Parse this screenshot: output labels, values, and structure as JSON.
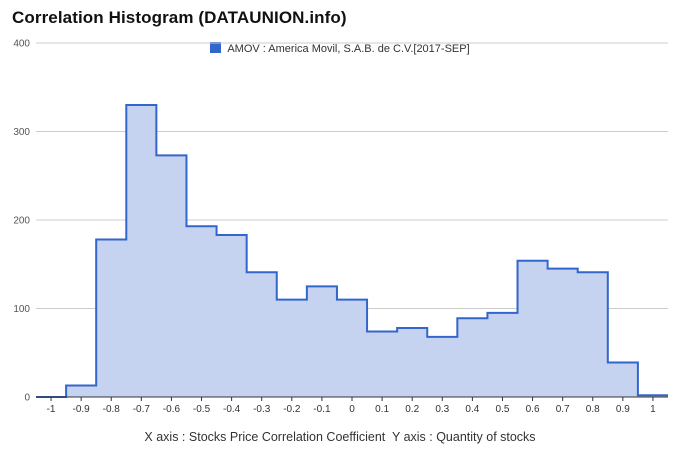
{
  "title": "Correlation Histogram (DATAUNION.info)",
  "legend_label": "AMOV : America Movil, S.A.B. de C.V.[2017-SEP]",
  "axis_caption": "X axis : Stocks Price Correlation Coefficient  Y axis : Quantity of stocks",
  "colors": {
    "line": "#3366cc",
    "fill": "#c5d3f0",
    "grid": "#cccccc"
  },
  "chart_data": {
    "type": "area",
    "step": true,
    "title": "Correlation Histogram (DATAUNION.info)",
    "xlabel": "Stocks Price Correlation Coefficient",
    "ylabel": "Quantity of stocks",
    "xlim": [
      -1.05,
      1.05
    ],
    "ylim": [
      0,
      400
    ],
    "x_ticks": [
      "-1",
      "-0.9",
      "-0.8",
      "-0.7",
      "-0.6",
      "-0.5",
      "-0.4",
      "-0.3",
      "-0.2",
      "-0.1",
      "0",
      "0.1",
      "0.2",
      "0.3",
      "0.4",
      "0.5",
      "0.6",
      "0.7",
      "0.8",
      "0.9",
      "1"
    ],
    "y_ticks": [
      0,
      100,
      200,
      300,
      400
    ],
    "grid": true,
    "legend_position": "top",
    "series": [
      {
        "name": "AMOV : America Movil, S.A.B. de C.V.[2017-SEP]",
        "x": [
          -1,
          -0.9,
          -0.8,
          -0.7,
          -0.6,
          -0.5,
          -0.4,
          -0.3,
          -0.2,
          -0.1,
          0,
          0.1,
          0.2,
          0.3,
          0.4,
          0.5,
          0.6,
          0.7,
          0.8,
          0.9,
          1
        ],
        "values": [
          0,
          13,
          178,
          330,
          273,
          193,
          183,
          141,
          110,
          125,
          110,
          74,
          78,
          68,
          89,
          95,
          154,
          145,
          141,
          39,
          2
        ]
      }
    ]
  }
}
